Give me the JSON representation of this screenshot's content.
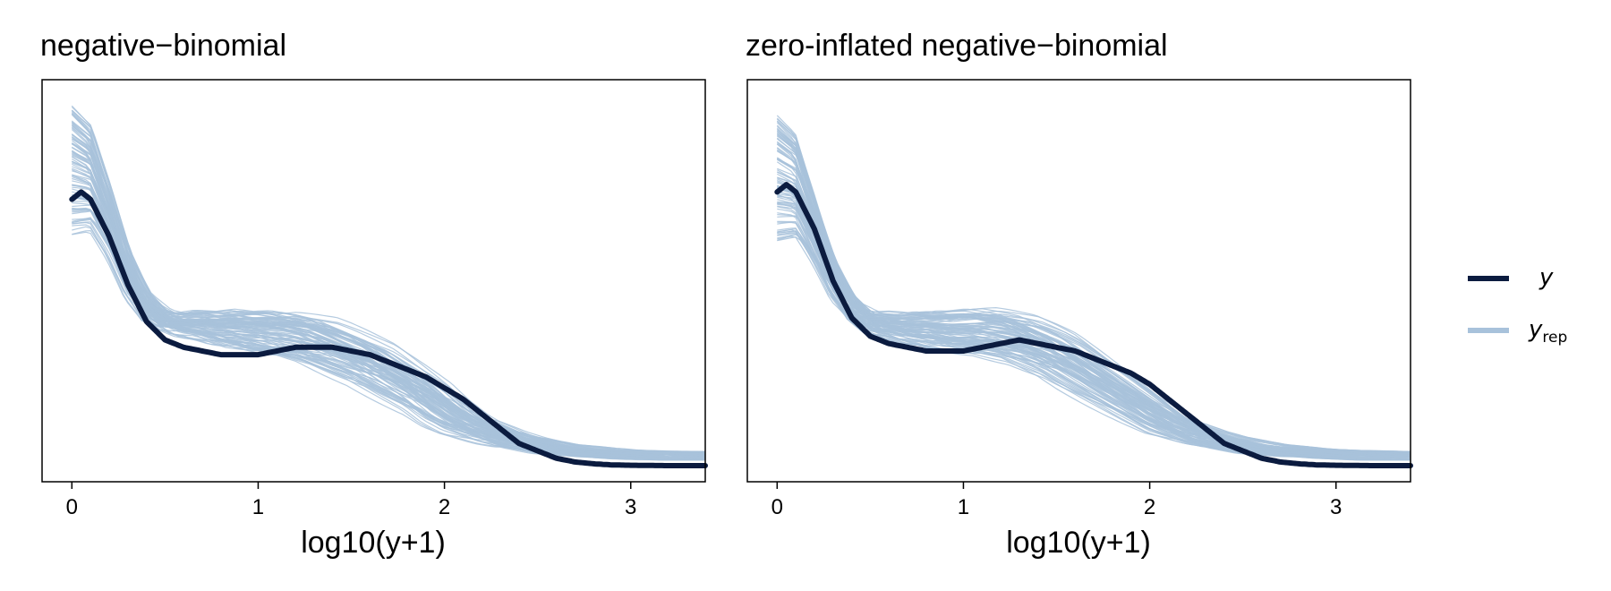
{
  "colors": {
    "y": "#0b1b3f",
    "yrep": "#a8c2db",
    "frame": "#000000"
  },
  "legend": {
    "y_label": "y",
    "yrep_label": "y",
    "yrep_sub": "rep"
  },
  "chart_data": [
    {
      "type": "line",
      "title": "negative−binomial",
      "xlabel": "log10(y+1)",
      "ylabel": "",
      "xlim": [
        -0.16,
        3.4
      ],
      "ylim": [
        0,
        1.0
      ],
      "xticks": [
        "0",
        "1",
        "2",
        "3"
      ],
      "y_series": {
        "name": "y",
        "x": [
          0,
          0.05,
          0.1,
          0.2,
          0.3,
          0.4,
          0.5,
          0.6,
          0.7,
          0.8,
          0.9,
          1.0,
          1.1,
          1.2,
          1.3,
          1.4,
          1.5,
          1.6,
          1.7,
          1.8,
          1.9,
          2.0,
          2.1,
          2.2,
          2.3,
          2.4,
          2.5,
          2.6,
          2.7,
          2.8,
          2.9,
          3.0,
          3.2,
          3.4
        ],
        "y": [
          0.72,
          0.74,
          0.72,
          0.62,
          0.49,
          0.39,
          0.34,
          0.32,
          0.31,
          0.3,
          0.3,
          0.3,
          0.31,
          0.32,
          0.32,
          0.32,
          0.31,
          0.3,
          0.28,
          0.26,
          0.24,
          0.21,
          0.18,
          0.14,
          0.1,
          0.06,
          0.04,
          0.02,
          0.01,
          0.005,
          0.002,
          0.001,
          0.0,
          0.0
        ]
      },
      "yrep_series": {
        "name": "yrep",
        "x": [
          0,
          0.1,
          0.2,
          0.3,
          0.4,
          0.5,
          0.6,
          0.7,
          0.8,
          0.9,
          1.0,
          1.1,
          1.2,
          1.3,
          1.4,
          1.5,
          1.6,
          1.7,
          1.8,
          1.9,
          2.0,
          2.1,
          2.2,
          2.3,
          2.4,
          2.5,
          2.6,
          2.7,
          2.8,
          2.9,
          3.0,
          3.2,
          3.4
        ],
        "mean": [
          0.8,
          0.78,
          0.66,
          0.52,
          0.43,
          0.39,
          0.38,
          0.38,
          0.37,
          0.37,
          0.36,
          0.36,
          0.35,
          0.34,
          0.32,
          0.3,
          0.28,
          0.25,
          0.22,
          0.19,
          0.15,
          0.12,
          0.1,
          0.08,
          0.065,
          0.055,
          0.045,
          0.04,
          0.035,
          0.032,
          0.03,
          0.027,
          0.025
        ],
        "count": 90
      }
    },
    {
      "type": "line",
      "title": "zero-inflated negative−binomial",
      "xlabel": "log10(y+1)",
      "ylabel": "",
      "xlim": [
        -0.16,
        3.4
      ],
      "ylim": [
        0,
        1.0
      ],
      "xticks": [
        "0",
        "1",
        "2",
        "3"
      ],
      "y_series": {
        "name": "y",
        "x": [
          0,
          0.05,
          0.1,
          0.2,
          0.3,
          0.4,
          0.5,
          0.6,
          0.7,
          0.8,
          0.9,
          1.0,
          1.1,
          1.2,
          1.3,
          1.4,
          1.5,
          1.6,
          1.7,
          1.8,
          1.9,
          2.0,
          2.1,
          2.2,
          2.3,
          2.4,
          2.5,
          2.6,
          2.7,
          2.8,
          2.9,
          3.0,
          3.2,
          3.4
        ],
        "y": [
          0.74,
          0.76,
          0.74,
          0.64,
          0.5,
          0.4,
          0.35,
          0.33,
          0.32,
          0.31,
          0.31,
          0.31,
          0.32,
          0.33,
          0.34,
          0.33,
          0.32,
          0.31,
          0.29,
          0.27,
          0.25,
          0.22,
          0.18,
          0.14,
          0.1,
          0.06,
          0.04,
          0.02,
          0.01,
          0.005,
          0.002,
          0.001,
          0.0,
          0.0
        ]
      },
      "yrep_series": {
        "name": "yrep",
        "x": [
          0,
          0.1,
          0.2,
          0.3,
          0.4,
          0.5,
          0.6,
          0.7,
          0.8,
          0.9,
          1.0,
          1.1,
          1.2,
          1.3,
          1.4,
          1.5,
          1.6,
          1.7,
          1.8,
          1.9,
          2.0,
          2.1,
          2.2,
          2.3,
          2.4,
          2.5,
          2.6,
          2.7,
          2.8,
          2.9,
          3.0,
          3.2,
          3.4
        ],
        "mean": [
          0.78,
          0.76,
          0.64,
          0.51,
          0.43,
          0.39,
          0.38,
          0.37,
          0.37,
          0.36,
          0.36,
          0.36,
          0.35,
          0.34,
          0.32,
          0.3,
          0.27,
          0.24,
          0.21,
          0.18,
          0.15,
          0.12,
          0.1,
          0.08,
          0.065,
          0.055,
          0.045,
          0.04,
          0.035,
          0.032,
          0.03,
          0.027,
          0.025
        ],
        "count": 90
      }
    }
  ]
}
